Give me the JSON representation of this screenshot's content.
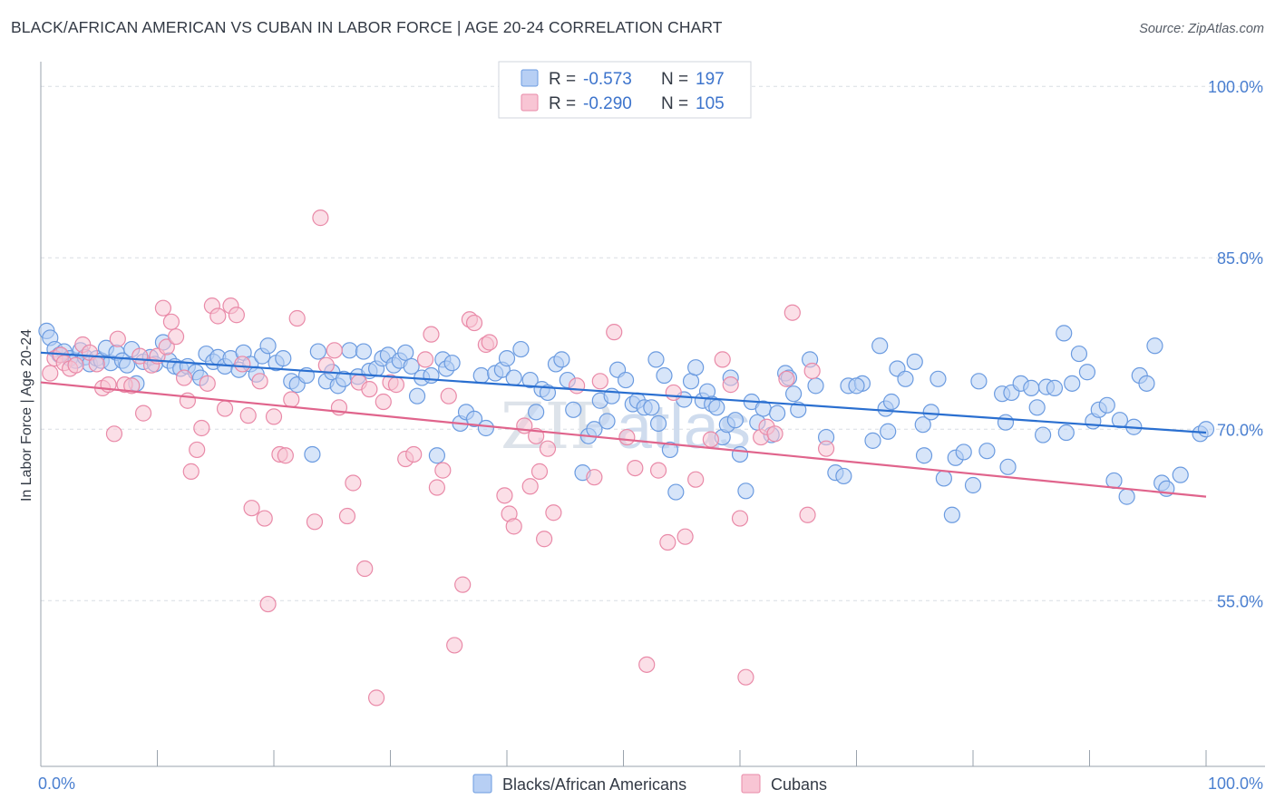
{
  "title": "BLACK/AFRICAN AMERICAN VS CUBAN IN LABOR FORCE | AGE 20-24 CORRELATION CHART",
  "source": "Source: ZipAtlas.com",
  "watermark": {
    "zip": "ZIP",
    "atlas": "atlas"
  },
  "legend": {
    "r_label": "R =",
    "n_label": "N =",
    "rows": [
      {
        "r": "-0.573",
        "n": "197",
        "fill": "#b7cff4",
        "stroke": "#6b9be0"
      },
      {
        "r": "-0.290",
        "n": "105",
        "fill": "#f8c5d4",
        "stroke": "#e98aa8"
      }
    ]
  },
  "bottom_legend": [
    {
      "label": "Blacks/African Americans",
      "fill": "#b7cff4",
      "stroke": "#6b9be0"
    },
    {
      "label": "Cubans",
      "fill": "#f8c5d4",
      "stroke": "#e98aa8"
    }
  ],
  "chart_data": {
    "type": "scatter",
    "ylabel": "In Labor Force | Age 20-24",
    "xlim": [
      0,
      100
    ],
    "ylim": [
      40.5,
      102
    ],
    "x_ticks": [
      0,
      10,
      20,
      30,
      40,
      50,
      60,
      70,
      80,
      90,
      100
    ],
    "x_tick_labels": [
      {
        "value": 0,
        "label": "0.0%"
      },
      {
        "value": 100,
        "label": "100.0%"
      }
    ],
    "y_ticks": [
      {
        "value": 100,
        "label": "100.0%"
      },
      {
        "value": 85,
        "label": "85.0%"
      },
      {
        "value": 70,
        "label": "70.0%"
      },
      {
        "value": 55,
        "label": "55.0%"
      }
    ],
    "grid": true,
    "series": [
      {
        "name": "Blacks/African Americans",
        "color": "#6b9be0",
        "fill": "#b7cff4",
        "trend_color": "#2a6fd0",
        "trend": [
          [
            0,
            76.7
          ],
          [
            100,
            69.7
          ]
        ],
        "points": [
          [
            0.5,
            78.6
          ],
          [
            0.8,
            78.0
          ],
          [
            1.2,
            77.0
          ],
          [
            1.6,
            76.5
          ],
          [
            2.0,
            76.8
          ],
          [
            2.5,
            76.2
          ],
          [
            3.0,
            76.0
          ],
          [
            3.4,
            76.9
          ],
          [
            3.8,
            76.3
          ],
          [
            4.2,
            75.7
          ],
          [
            4.8,
            76.2
          ],
          [
            5.2,
            76.0
          ],
          [
            5.6,
            77.1
          ],
          [
            6.0,
            75.8
          ],
          [
            6.5,
            76.7
          ],
          [
            7.0,
            76.0
          ],
          [
            7.4,
            75.6
          ],
          [
            7.8,
            77.0
          ],
          [
            8.2,
            74.0
          ],
          [
            8.8,
            75.9
          ],
          [
            9.4,
            76.3
          ],
          [
            9.8,
            75.7
          ],
          [
            10.5,
            77.6
          ],
          [
            11.0,
            76.0
          ],
          [
            11.5,
            75.5
          ],
          [
            12.0,
            75.3
          ],
          [
            12.6,
            75.5
          ],
          [
            13.3,
            75.0
          ],
          [
            13.7,
            74.5
          ],
          [
            14.2,
            76.6
          ],
          [
            14.8,
            75.9
          ],
          [
            15.2,
            76.3
          ],
          [
            15.8,
            75.5
          ],
          [
            16.3,
            76.2
          ],
          [
            17.0,
            75.2
          ],
          [
            17.4,
            76.7
          ],
          [
            18.0,
            75.7
          ],
          [
            18.5,
            74.8
          ],
          [
            19.0,
            76.4
          ],
          [
            19.5,
            77.3
          ],
          [
            20.2,
            75.8
          ],
          [
            20.8,
            76.2
          ],
          [
            21.5,
            74.2
          ],
          [
            22.0,
            73.9
          ],
          [
            22.8,
            74.7
          ],
          [
            23.3,
            67.8
          ],
          [
            23.8,
            76.8
          ],
          [
            24.5,
            74.2
          ],
          [
            25.0,
            75.0
          ],
          [
            25.5,
            73.8
          ],
          [
            26.0,
            74.4
          ],
          [
            26.5,
            76.9
          ],
          [
            27.2,
            74.6
          ],
          [
            27.7,
            76.8
          ],
          [
            28.2,
            75.1
          ],
          [
            28.8,
            75.3
          ],
          [
            29.3,
            76.2
          ],
          [
            29.8,
            76.5
          ],
          [
            30.3,
            75.6
          ],
          [
            30.8,
            76.0
          ],
          [
            31.3,
            76.7
          ],
          [
            31.8,
            75.5
          ],
          [
            32.3,
            72.9
          ],
          [
            32.7,
            74.5
          ],
          [
            33.5,
            74.7
          ],
          [
            34.0,
            67.7
          ],
          [
            34.5,
            76.1
          ],
          [
            34.8,
            75.3
          ],
          [
            35.3,
            75.8
          ],
          [
            36.0,
            70.5
          ],
          [
            36.5,
            71.5
          ],
          [
            37.2,
            70.9
          ],
          [
            37.8,
            74.7
          ],
          [
            38.2,
            70.1
          ],
          [
            39.0,
            74.9
          ],
          [
            39.6,
            75.2
          ],
          [
            40.0,
            76.2
          ],
          [
            40.6,
            74.5
          ],
          [
            41.2,
            77.0
          ],
          [
            42.0,
            74.3
          ],
          [
            42.5,
            71.5
          ],
          [
            43.0,
            73.5
          ],
          [
            43.5,
            73.2
          ],
          [
            44.2,
            75.7
          ],
          [
            44.7,
            76.1
          ],
          [
            45.2,
            74.3
          ],
          [
            45.7,
            71.7
          ],
          [
            46.5,
            66.2
          ],
          [
            47.0,
            69.4
          ],
          [
            47.5,
            70.0
          ],
          [
            48.0,
            72.5
          ],
          [
            48.6,
            70.7
          ],
          [
            49.0,
            72.9
          ],
          [
            49.5,
            75.2
          ],
          [
            50.2,
            74.3
          ],
          [
            50.8,
            72.2
          ],
          [
            51.2,
            72.5
          ],
          [
            51.8,
            71.9
          ],
          [
            52.4,
            71.9
          ],
          [
            52.8,
            76.1
          ],
          [
            53.0,
            70.5
          ],
          [
            53.5,
            74.7
          ],
          [
            54.0,
            68.2
          ],
          [
            54.5,
            64.5
          ],
          [
            55.2,
            72.6
          ],
          [
            55.8,
            74.2
          ],
          [
            56.2,
            75.4
          ],
          [
            56.8,
            72.5
          ],
          [
            57.2,
            73.3
          ],
          [
            57.6,
            72.2
          ],
          [
            58.0,
            71.9
          ],
          [
            58.5,
            69.3
          ],
          [
            58.9,
            70.4
          ],
          [
            59.2,
            74.5
          ],
          [
            59.6,
            70.8
          ],
          [
            60.0,
            67.8
          ],
          [
            60.5,
            64.6
          ],
          [
            61.0,
            72.4
          ],
          [
            61.5,
            70.6
          ],
          [
            62.0,
            71.8
          ],
          [
            62.7,
            69.5
          ],
          [
            63.2,
            71.4
          ],
          [
            63.9,
            74.9
          ],
          [
            64.2,
            74.5
          ],
          [
            64.6,
            73.1
          ],
          [
            65.0,
            71.7
          ],
          [
            66.0,
            76.1
          ],
          [
            66.5,
            73.8
          ],
          [
            67.4,
            69.3
          ],
          [
            68.2,
            66.2
          ],
          [
            68.9,
            65.9
          ],
          [
            69.3,
            73.8
          ],
          [
            70.5,
            74.0
          ],
          [
            71.4,
            69.0
          ],
          [
            72.0,
            77.3
          ],
          [
            72.5,
            71.8
          ],
          [
            73.0,
            72.4
          ],
          [
            73.5,
            75.3
          ],
          [
            74.2,
            74.4
          ],
          [
            75.0,
            75.9
          ],
          [
            75.7,
            70.4
          ],
          [
            76.4,
            71.5
          ],
          [
            77.0,
            74.4
          ],
          [
            77.5,
            65.7
          ],
          [
            78.2,
            62.5
          ],
          [
            78.5,
            67.5
          ],
          [
            79.2,
            68.0
          ],
          [
            80.0,
            65.1
          ],
          [
            80.5,
            74.2
          ],
          [
            81.2,
            68.1
          ],
          [
            82.5,
            73.1
          ],
          [
            82.8,
            70.6
          ],
          [
            83.3,
            73.2
          ],
          [
            84.1,
            74.0
          ],
          [
            85.0,
            73.6
          ],
          [
            85.5,
            71.9
          ],
          [
            86.3,
            73.7
          ],
          [
            87.0,
            73.6
          ],
          [
            87.8,
            78.4
          ],
          [
            88.0,
            69.7
          ],
          [
            88.5,
            74.0
          ],
          [
            89.1,
            76.6
          ],
          [
            89.8,
            75.0
          ],
          [
            90.3,
            70.7
          ],
          [
            90.8,
            71.7
          ],
          [
            91.5,
            72.1
          ],
          [
            92.1,
            65.5
          ],
          [
            92.6,
            70.8
          ],
          [
            93.2,
            64.1
          ],
          [
            93.8,
            70.2
          ],
          [
            94.3,
            74.7
          ],
          [
            94.9,
            74.0
          ],
          [
            95.6,
            77.3
          ],
          [
            96.2,
            65.3
          ],
          [
            96.6,
            64.8
          ],
          [
            97.8,
            66.0
          ],
          [
            99.5,
            69.6
          ],
          [
            100.0,
            70.0
          ],
          [
            83.0,
            66.7
          ],
          [
            86.0,
            69.5
          ],
          [
            75.8,
            67.7
          ],
          [
            72.7,
            69.8
          ],
          [
            70.0,
            73.8
          ]
        ]
      },
      {
        "name": "Cubans",
        "color": "#e98aa8",
        "fill": "#f8c5d4",
        "trend_color": "#e0648c",
        "trend": [
          [
            0,
            74.1
          ],
          [
            100,
            64.1
          ]
        ],
        "points": [
          [
            0.8,
            74.9
          ],
          [
            1.2,
            76.2
          ],
          [
            1.7,
            76.5
          ],
          [
            2.0,
            75.8
          ],
          [
            2.5,
            75.3
          ],
          [
            3.0,
            75.6
          ],
          [
            3.6,
            77.4
          ],
          [
            4.2,
            76.7
          ],
          [
            4.8,
            75.7
          ],
          [
            5.3,
            73.6
          ],
          [
            5.8,
            73.9
          ],
          [
            6.3,
            69.6
          ],
          [
            6.6,
            77.9
          ],
          [
            7.2,
            73.9
          ],
          [
            7.8,
            73.8
          ],
          [
            8.5,
            76.4
          ],
          [
            8.8,
            71.4
          ],
          [
            9.5,
            75.6
          ],
          [
            10.0,
            76.4
          ],
          [
            10.5,
            80.6
          ],
          [
            10.8,
            77.2
          ],
          [
            11.2,
            79.4
          ],
          [
            11.6,
            78.1
          ],
          [
            12.3,
            74.5
          ],
          [
            12.6,
            72.5
          ],
          [
            12.9,
            66.3
          ],
          [
            13.4,
            68.2
          ],
          [
            13.8,
            70.1
          ],
          [
            14.3,
            74.0
          ],
          [
            14.7,
            80.8
          ],
          [
            15.2,
            79.9
          ],
          [
            15.8,
            71.8
          ],
          [
            16.3,
            80.8
          ],
          [
            16.8,
            80.0
          ],
          [
            17.3,
            75.7
          ],
          [
            17.8,
            71.2
          ],
          [
            18.1,
            63.1
          ],
          [
            18.8,
            74.2
          ],
          [
            19.2,
            62.2
          ],
          [
            19.5,
            54.7
          ],
          [
            20.0,
            71.1
          ],
          [
            20.5,
            67.8
          ],
          [
            21.0,
            67.7
          ],
          [
            21.5,
            72.6
          ],
          [
            22.0,
            79.7
          ],
          [
            23.5,
            61.9
          ],
          [
            24.0,
            88.5
          ],
          [
            24.5,
            75.6
          ],
          [
            25.2,
            76.9
          ],
          [
            25.6,
            71.9
          ],
          [
            26.3,
            62.4
          ],
          [
            26.8,
            65.3
          ],
          [
            27.3,
            74.1
          ],
          [
            27.8,
            57.8
          ],
          [
            28.2,
            73.5
          ],
          [
            28.8,
            46.5
          ],
          [
            29.4,
            72.4
          ],
          [
            30.0,
            74.1
          ],
          [
            30.5,
            73.9
          ],
          [
            31.3,
            67.4
          ],
          [
            32.0,
            67.8
          ],
          [
            33.0,
            76.1
          ],
          [
            33.5,
            78.3
          ],
          [
            34.0,
            64.9
          ],
          [
            34.5,
            66.4
          ],
          [
            35.0,
            72.9
          ],
          [
            35.5,
            51.1
          ],
          [
            36.2,
            56.4
          ],
          [
            36.8,
            79.6
          ],
          [
            37.2,
            79.3
          ],
          [
            38.2,
            77.4
          ],
          [
            38.5,
            77.6
          ],
          [
            39.8,
            64.2
          ],
          [
            40.2,
            62.6
          ],
          [
            40.6,
            61.5
          ],
          [
            41.5,
            70.3
          ],
          [
            42.0,
            65.0
          ],
          [
            42.5,
            69.4
          ],
          [
            42.8,
            66.3
          ],
          [
            43.2,
            60.4
          ],
          [
            43.5,
            68.3
          ],
          [
            44.0,
            62.7
          ],
          [
            46.0,
            73.8
          ],
          [
            47.5,
            65.8
          ],
          [
            48.0,
            74.2
          ],
          [
            49.2,
            78.5
          ],
          [
            50.3,
            69.3
          ],
          [
            51.0,
            66.6
          ],
          [
            52.0,
            49.4
          ],
          [
            53.0,
            66.4
          ],
          [
            53.8,
            60.1
          ],
          [
            54.3,
            73.2
          ],
          [
            55.3,
            60.6
          ],
          [
            56.2,
            65.6
          ],
          [
            57.5,
            69.1
          ],
          [
            58.5,
            76.1
          ],
          [
            59.2,
            73.9
          ],
          [
            60.0,
            62.2
          ],
          [
            60.5,
            48.3
          ],
          [
            61.8,
            69.3
          ],
          [
            62.3,
            70.2
          ],
          [
            63.0,
            69.6
          ],
          [
            64.0,
            74.4
          ],
          [
            64.5,
            80.2
          ],
          [
            65.8,
            62.5
          ],
          [
            66.2,
            75.1
          ],
          [
            67.4,
            68.3
          ]
        ]
      }
    ]
  }
}
